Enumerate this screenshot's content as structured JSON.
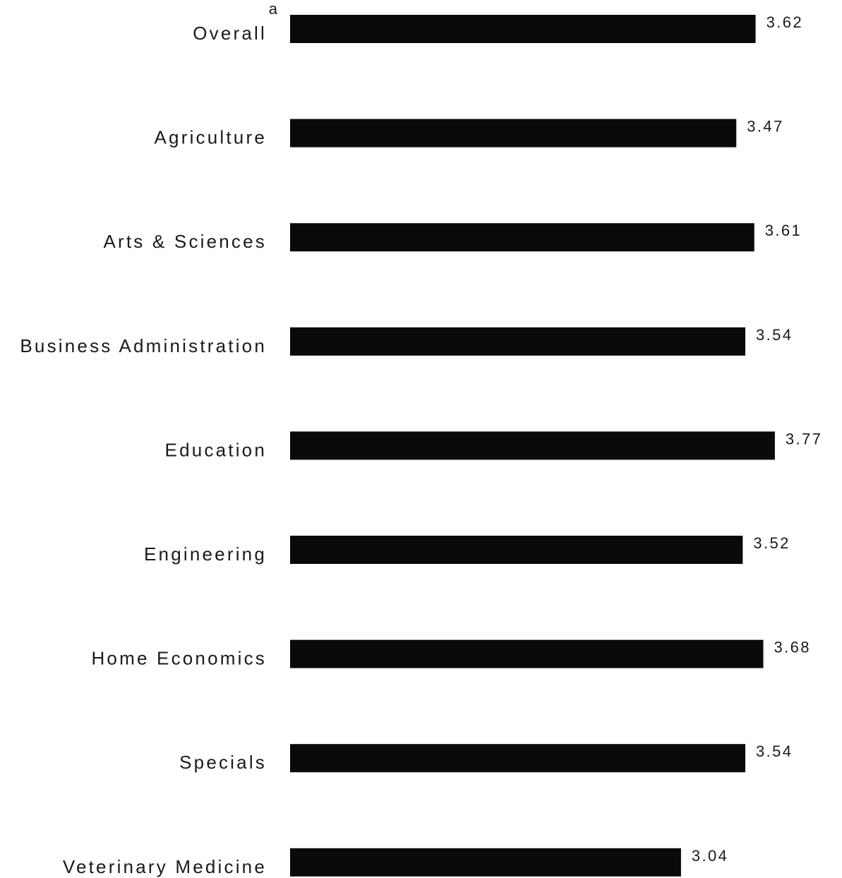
{
  "chart_data": {
    "type": "bar",
    "orientation": "horizontal",
    "categories": [
      "Overall",
      "Agriculture",
      "Arts & Sciences",
      "Business Administration",
      "Education",
      "Engineering",
      "Home Economics",
      "Specials",
      "Veterinary Medicine"
    ],
    "values": [
      3.62,
      3.47,
      3.61,
      3.54,
      3.77,
      3.52,
      3.68,
      3.54,
      3.04
    ],
    "value_labels": [
      "3.62",
      "3.47",
      "3.61",
      "3.54",
      "3.77",
      "3.52",
      "3.68",
      "3.54",
      "3.04"
    ],
    "annotations": [
      {
        "category": "Overall",
        "text": "a"
      }
    ],
    "title": "",
    "xlabel": "",
    "ylabel": "",
    "grid": false,
    "bar_color": "#0a0a0a"
  }
}
